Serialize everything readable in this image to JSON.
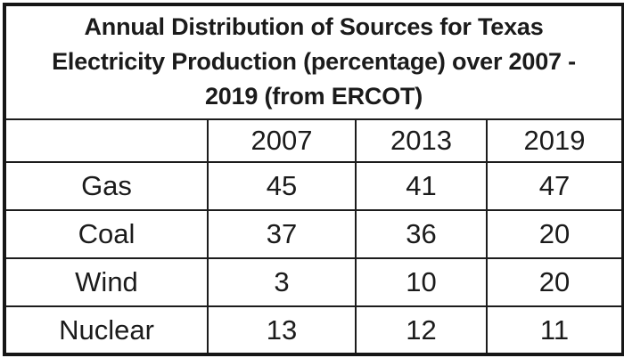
{
  "table": {
    "title_lines": [
      "Annual Distribution of Sources for Texas",
      "Electricity Production (percentage) over 2007 -",
      "2019 (from ERCOT)"
    ],
    "columns": [
      "",
      "2007",
      "2013",
      "2019"
    ],
    "rows": [
      {
        "label": "Gas",
        "values": [
          "45",
          "41",
          "47"
        ]
      },
      {
        "label": "Coal",
        "values": [
          "37",
          "36",
          "20"
        ]
      },
      {
        "label": "Wind",
        "values": [
          "3",
          "10",
          "20"
        ]
      },
      {
        "label": "Nuclear",
        "values": [
          "13",
          "12",
          "11"
        ]
      }
    ],
    "colors": {
      "border": "#161616",
      "text": "#1b1b1b",
      "background": "#ffffff"
    }
  },
  "chart_data": {
    "type": "table",
    "title": "Annual Distribution of Sources for Texas Electricity Production (percentage) over 2007 - 2019 (from ERCOT)",
    "categories": [
      "2007",
      "2013",
      "2019"
    ],
    "series": [
      {
        "name": "Gas",
        "values": [
          45,
          41,
          47
        ]
      },
      {
        "name": "Coal",
        "values": [
          37,
          36,
          20
        ]
      },
      {
        "name": "Wind",
        "values": [
          3,
          10,
          20
        ]
      },
      {
        "name": "Nuclear",
        "values": [
          13,
          12,
          11
        ]
      }
    ],
    "value_unit": "percent",
    "source": "ERCOT"
  }
}
